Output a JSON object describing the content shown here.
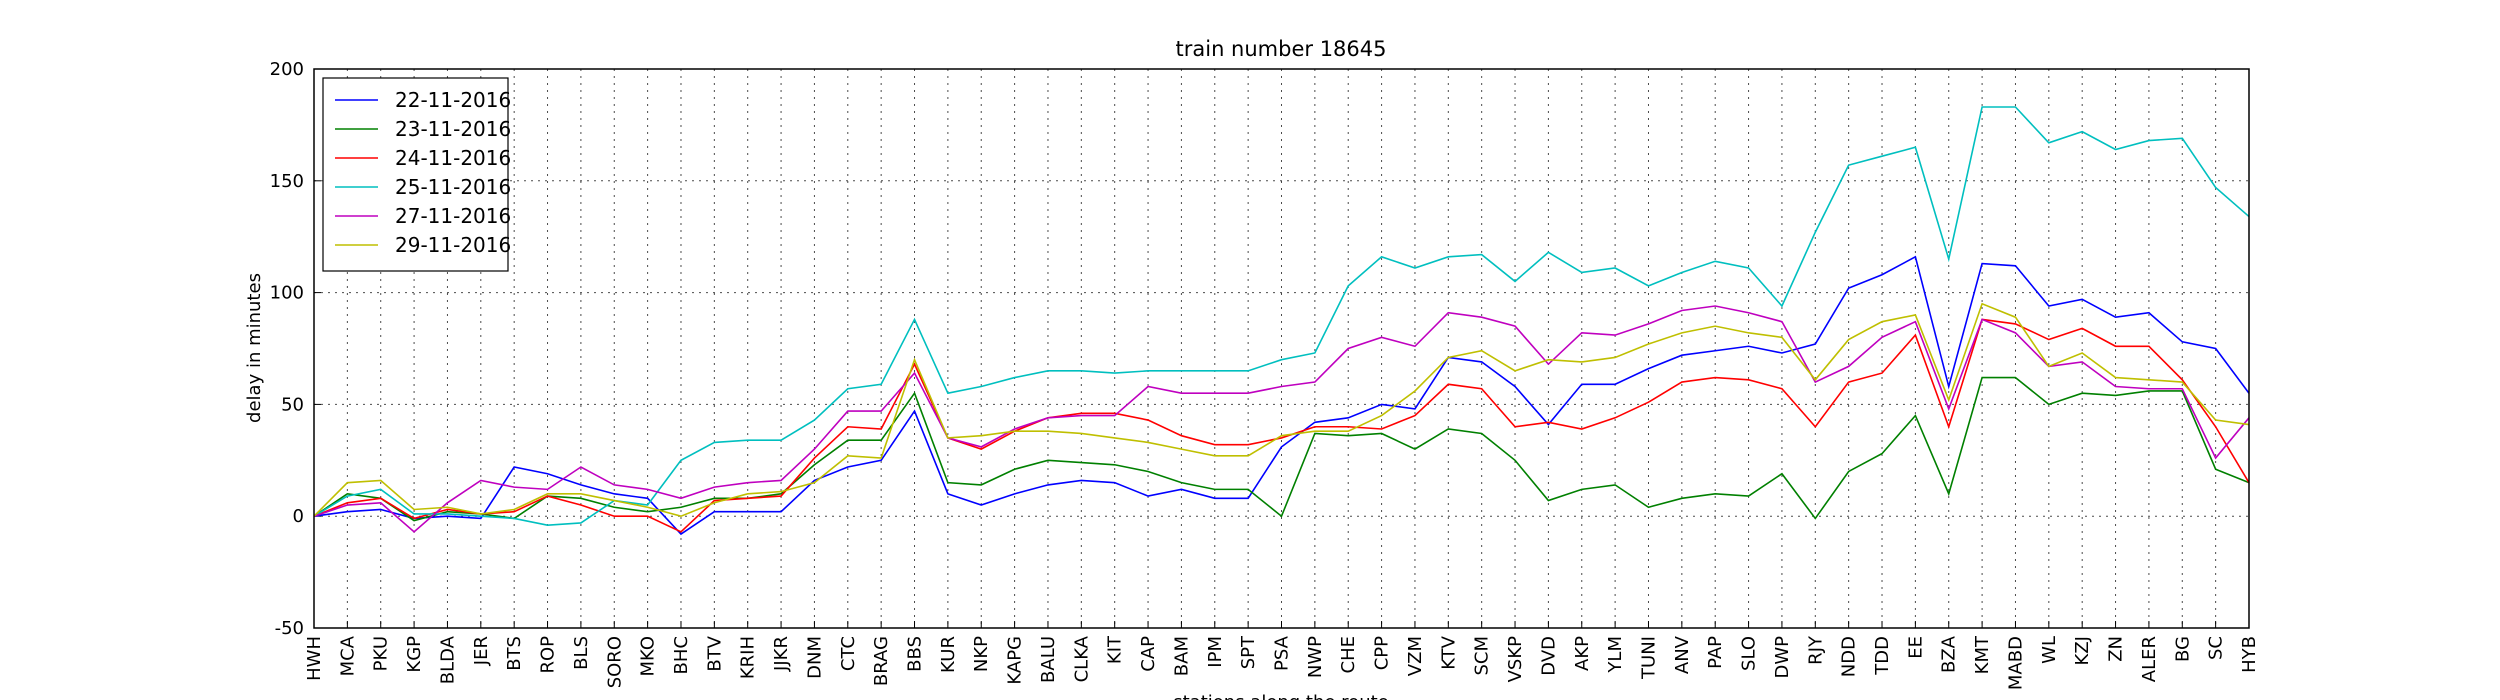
{
  "chart_data": {
    "type": "line",
    "title": "train number 18645",
    "x_label": "stations along the route",
    "y_label": "delay in minutes",
    "categories": [
      "HWH",
      "MCA",
      "PKU",
      "KGP",
      "BLDA",
      "JER",
      "BTS",
      "ROP",
      "BLS",
      "SORO",
      "MKO",
      "BHC",
      "BTV",
      "KRIH",
      "JJKR",
      "DNM",
      "CTC",
      "BRAG",
      "BBS",
      "KUR",
      "NKP",
      "KAPG",
      "BALU",
      "CLKA",
      "KIT",
      "CAP",
      "BAM",
      "IPM",
      "SPT",
      "PSA",
      "NWP",
      "CHE",
      "CPP",
      "VZM",
      "KTV",
      "SCM",
      "VSKP",
      "DVD",
      "AKP",
      "YLM",
      "TUNI",
      "ANV",
      "PAP",
      "SLO",
      "DWP",
      "RJY",
      "NDD",
      "TDD",
      "EE",
      "BZA",
      "KMT",
      "MABD",
      "WL",
      "KZJ",
      "ZN",
      "ALER",
      "BG",
      "SC",
      "HYB"
    ],
    "series": [
      {
        "name": "22-11-2016",
        "color": "#0000ff",
        "values": [
          0,
          2,
          3,
          -1,
          0,
          -1,
          22,
          19,
          14,
          10,
          8,
          -8,
          2,
          2,
          2,
          16,
          22,
          25,
          47,
          10,
          5,
          10,
          14,
          16,
          15,
          9,
          12,
          8,
          8,
          31,
          42,
          44,
          50,
          48,
          71,
          69,
          58,
          41,
          59,
          59,
          66,
          72,
          74,
          76,
          73,
          77,
          102,
          108,
          116,
          58,
          113,
          112,
          94,
          97,
          89,
          91,
          78,
          75,
          55
        ]
      },
      {
        "name": "23-11-2016",
        "color": "#008000",
        "values": [
          0,
          10,
          8,
          -2,
          2,
          1,
          -1,
          9,
          8,
          4,
          2,
          4,
          8,
          8,
          10,
          23,
          34,
          34,
          55,
          15,
          14,
          21,
          25,
          24,
          23,
          20,
          15,
          12,
          12,
          0,
          37,
          36,
          37,
          30,
          39,
          37,
          25,
          7,
          12,
          14,
          4,
          8,
          10,
          9,
          19,
          -1,
          20,
          28,
          45,
          10,
          62,
          62,
          50,
          55,
          54,
          56,
          56,
          21,
          15
        ]
      },
      {
        "name": "24-11-2016",
        "color": "#ff0000",
        "values": [
          0,
          6,
          8,
          -1,
          3,
          1,
          2,
          9,
          5,
          0,
          0,
          -7,
          7,
          8,
          9,
          26,
          40,
          39,
          68,
          35,
          30,
          38,
          44,
          46,
          46,
          43,
          36,
          32,
          32,
          35,
          40,
          40,
          39,
          45,
          59,
          57,
          40,
          42,
          39,
          44,
          51,
          60,
          62,
          61,
          57,
          40,
          60,
          64,
          81,
          40,
          88,
          86,
          79,
          84,
          76,
          76,
          61,
          40,
          15
        ]
      },
      {
        "name": "25-11-2016",
        "color": "#00bfbf",
        "values": [
          0,
          9,
          12,
          1,
          1,
          0,
          -1,
          -4,
          -3,
          7,
          5,
          25,
          33,
          34,
          34,
          43,
          57,
          59,
          88,
          55,
          58,
          62,
          65,
          65,
          64,
          65,
          65,
          65,
          65,
          70,
          73,
          103,
          116,
          111,
          116,
          117,
          105,
          118,
          109,
          111,
          103,
          109,
          114,
          111,
          94,
          127,
          157,
          161,
          165,
          115,
          183,
          183,
          167,
          172,
          164,
          168,
          169,
          147,
          134
        ]
      },
      {
        "name": "27-11-2016",
        "color": "#bf00bf",
        "values": [
          0,
          5,
          6,
          -7,
          6,
          16,
          13,
          12,
          22,
          14,
          12,
          8,
          13,
          15,
          16,
          30,
          47,
          47,
          64,
          35,
          31,
          39,
          44,
          45,
          45,
          58,
          55,
          55,
          55,
          58,
          60,
          75,
          80,
          76,
          91,
          89,
          85,
          68,
          82,
          81,
          86,
          92,
          94,
          91,
          87,
          60,
          67,
          80,
          87,
          48,
          88,
          82,
          67,
          69,
          58,
          57,
          57,
          26,
          44
        ]
      },
      {
        "name": "29-11-2016",
        "color": "#bfbf00",
        "values": [
          0,
          15,
          16,
          3,
          4,
          1,
          3,
          10,
          10,
          7,
          4,
          0,
          6,
          10,
          11,
          15,
          27,
          26,
          70,
          35,
          36,
          38,
          38,
          37,
          35,
          33,
          30,
          27,
          27,
          36,
          38,
          38,
          45,
          56,
          71,
          74,
          65,
          70,
          69,
          71,
          77,
          82,
          85,
          82,
          80,
          61,
          79,
          87,
          90,
          52,
          95,
          89,
          67,
          73,
          62,
          61,
          60,
          43,
          41
        ]
      }
    ],
    "ylim": [
      -50,
      200
    ],
    "yticks": [
      -50,
      0,
      50,
      100,
      150,
      200
    ],
    "grid": true,
    "legend": "upper left"
  }
}
